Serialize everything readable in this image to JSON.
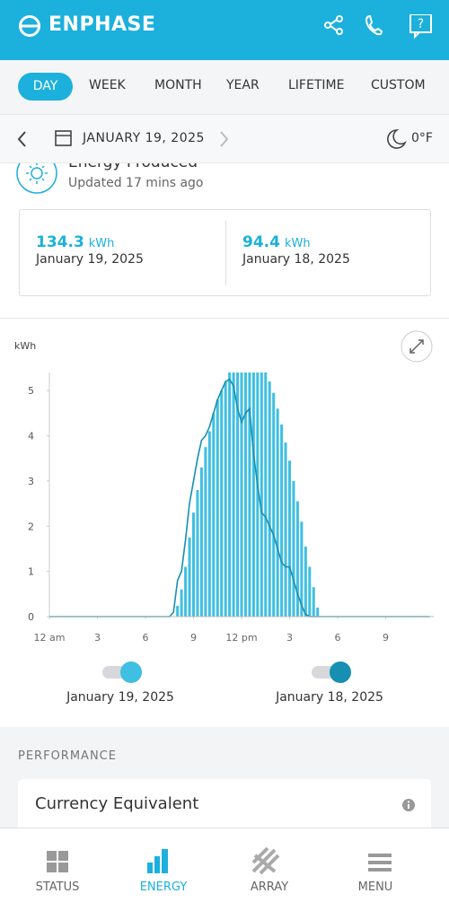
{
  "header": {
    "brand": "ENPHASE"
  },
  "tabs": [
    "DAY",
    "WEEK",
    "MONTH",
    "YEAR",
    "LIFETIME",
    "CUSTOM"
  ],
  "date_bar": {
    "date": "JANUARY 19, 2025",
    "temperature": "0°F"
  },
  "energy": {
    "title": "Energy Produced",
    "updated": "Updated 17 mins ago",
    "totals": [
      {
        "value": 134.3,
        "unit": "kWh",
        "date": "January 19, 2025"
      },
      {
        "value": 94.4,
        "unit": "kWh",
        "date": "January 18, 2025"
      }
    ]
  },
  "chart_data": {
    "type": "bar",
    "y_label": "kWh",
    "xlim": [
      0,
      24
    ],
    "xticks": [
      {
        "value": 0,
        "label": "12 am"
      },
      3,
      6,
      9,
      {
        "value": 12,
        "label": "12 pm"
      },
      {
        "value": 15,
        "label": "3"
      },
      {
        "value": 18,
        "label": "6"
      },
      {
        "value": 21,
        "label": "9"
      }
    ],
    "ylim": [
      0,
      5.4
    ],
    "yticks": [
      0,
      1,
      2,
      3,
      4,
      5
    ],
    "series": [
      {
        "name": "January 19, 2025",
        "type": "bar",
        "color": "#3fbfe2",
        "x": [
          8,
          8.25,
          8.5,
          8.75,
          9,
          9.25,
          9.5,
          9.75,
          10,
          10.25,
          10.5,
          10.75,
          11,
          11.25,
          11.5,
          11.75,
          12,
          12.25,
          12.5,
          12.75,
          13,
          13.25,
          13.5,
          13.75,
          14,
          14.25,
          14.5,
          14.75,
          15,
          15.25,
          15.5,
          15.75,
          16,
          16.25,
          16.5,
          16.75
        ],
        "values": [
          0.24,
          0.6,
          1.1,
          1.75,
          2.3,
          2.8,
          3.3,
          3.75,
          4.1,
          4.5,
          4.8,
          5.0,
          5.2,
          5.4,
          5.4,
          5.4,
          5.4,
          5.4,
          5.4,
          5.4,
          5.4,
          5.4,
          5.4,
          5.2,
          4.95,
          4.6,
          4.25,
          3.85,
          3.45,
          3.0,
          2.55,
          2.1,
          1.55,
          1.1,
          0.65,
          0.2
        ]
      },
      {
        "name": "January 18, 2025",
        "type": "line",
        "color": "#168fb3",
        "x": [
          0,
          7.5,
          7.75,
          8,
          8.25,
          8.5,
          8.75,
          9,
          9.25,
          9.5,
          9.75,
          10,
          10.25,
          10.5,
          10.75,
          11,
          11.25,
          11.5,
          11.75,
          12,
          12.25,
          12.5,
          12.75,
          13,
          13.25,
          13.5,
          13.75,
          14,
          14.25,
          14.5,
          14.75,
          15,
          15.25,
          15.5,
          15.75,
          16,
          16.25,
          23.75
        ],
        "values": [
          0,
          0,
          0.1,
          0.8,
          1.0,
          1.7,
          2.5,
          3.0,
          3.5,
          3.9,
          4.0,
          4.2,
          4.5,
          4.8,
          5.0,
          5.2,
          5.25,
          5.1,
          4.6,
          4.3,
          4.5,
          4.6,
          3.6,
          2.9,
          2.3,
          2.2,
          2.0,
          1.8,
          1.5,
          1.2,
          1.1,
          1.1,
          0.8,
          0.5,
          0.25,
          0.05,
          0,
          0
        ]
      }
    ]
  },
  "performance": {
    "heading": "PERFORMANCE",
    "card_title": "Currency Equivalent"
  },
  "nav": [
    "STATUS",
    "ENERGY",
    "ARRAY",
    "MENU"
  ]
}
